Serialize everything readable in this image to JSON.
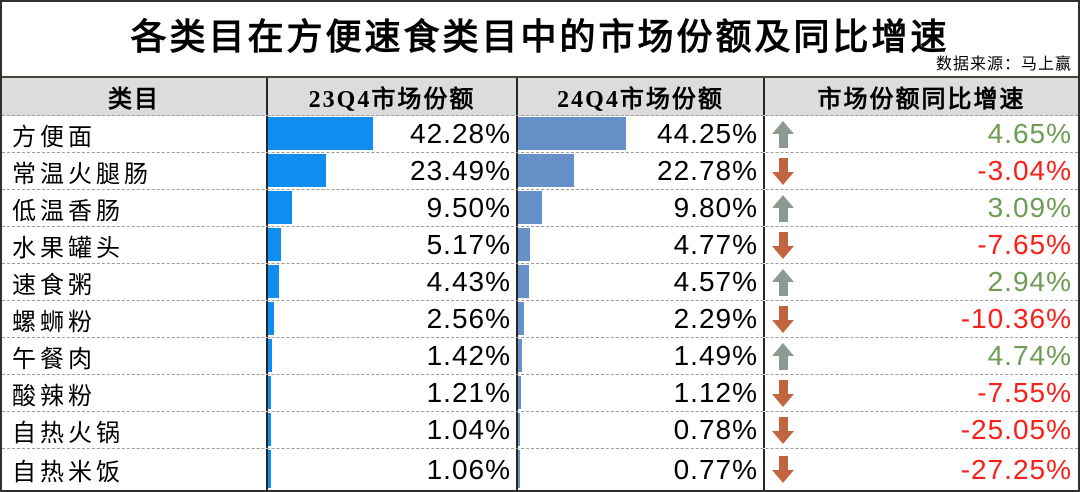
{
  "title": "各类目在方便速食类目中的市场份额及同比增速",
  "source": "数据来源：马上赢",
  "colors": {
    "bar_23q4": "#0f8ef0",
    "bar_24q4": "#6591c8",
    "header_bg": "#dcdcdc",
    "positive_text": "#6f9c55",
    "negative_text": "#f9201a",
    "up_arrow": "#8c9b8f",
    "down_arrow": "#c0653f"
  },
  "table": {
    "headers": {
      "category": "类目",
      "q23": "23Q4市场份额",
      "q24": "24Q4市场份额",
      "growth": "市场份额同比增速"
    },
    "rows": [
      {
        "category": "方便面",
        "share_23q4": "42.28%",
        "share_24q4": "44.25%",
        "growth": "4.65%",
        "direction": "up"
      },
      {
        "category": "常温火腿肠",
        "share_23q4": "23.49%",
        "share_24q4": "22.78%",
        "growth": "-3.04%",
        "direction": "down"
      },
      {
        "category": "低温香肠",
        "share_23q4": "9.50%",
        "share_24q4": "9.80%",
        "growth": "3.09%",
        "direction": "up"
      },
      {
        "category": "水果罐头",
        "share_23q4": "5.17%",
        "share_24q4": "4.77%",
        "growth": "-7.65%",
        "direction": "down"
      },
      {
        "category": "速食粥",
        "share_23q4": "4.43%",
        "share_24q4": "4.57%",
        "growth": "2.94%",
        "direction": "up"
      },
      {
        "category": "螺蛳粉",
        "share_23q4": "2.56%",
        "share_24q4": "2.29%",
        "growth": "-10.36%",
        "direction": "down"
      },
      {
        "category": "午餐肉",
        "share_23q4": "1.42%",
        "share_24q4": "1.49%",
        "growth": "4.74%",
        "direction": "up"
      },
      {
        "category": "酸辣粉",
        "share_23q4": "1.21%",
        "share_24q4": "1.12%",
        "growth": "-7.55%",
        "direction": "down"
      },
      {
        "category": "自热火锅",
        "share_23q4": "1.04%",
        "share_24q4": "0.78%",
        "growth": "-25.05%",
        "direction": "down"
      },
      {
        "category": "自热米饭",
        "share_23q4": "1.06%",
        "share_24q4": "0.77%",
        "growth": "-27.25%",
        "direction": "down"
      }
    ]
  },
  "chart_data": {
    "type": "table",
    "title": "各类目在方便速食类目中的市场份额及同比增速",
    "source": "数据来源：马上赢",
    "categories": [
      "方便面",
      "常温火腿肠",
      "低温香肠",
      "水果罐头",
      "速食粥",
      "螺蛳粉",
      "午餐肉",
      "酸辣粉",
      "自热火锅",
      "自热米饭"
    ],
    "series": [
      {
        "name": "23Q4市场份额",
        "unit": "%",
        "bar_color": "#0f8ef0",
        "bar_scale": [
          0,
          100
        ],
        "values": [
          42.28,
          23.49,
          9.5,
          5.17,
          4.43,
          2.56,
          1.42,
          1.21,
          1.04,
          1.06
        ]
      },
      {
        "name": "24Q4市场份额",
        "unit": "%",
        "bar_color": "#6591c8",
        "bar_scale": [
          0,
          100
        ],
        "values": [
          44.25,
          22.78,
          9.8,
          4.77,
          4.57,
          2.29,
          1.49,
          1.12,
          0.78,
          0.77
        ]
      },
      {
        "name": "市场份额同比增速",
        "unit": "%",
        "values": [
          4.65,
          -3.04,
          3.09,
          -7.65,
          2.94,
          -10.36,
          4.74,
          -7.55,
          -25.05,
          -27.25
        ]
      }
    ],
    "legend": "none",
    "grid": "row-separators"
  }
}
